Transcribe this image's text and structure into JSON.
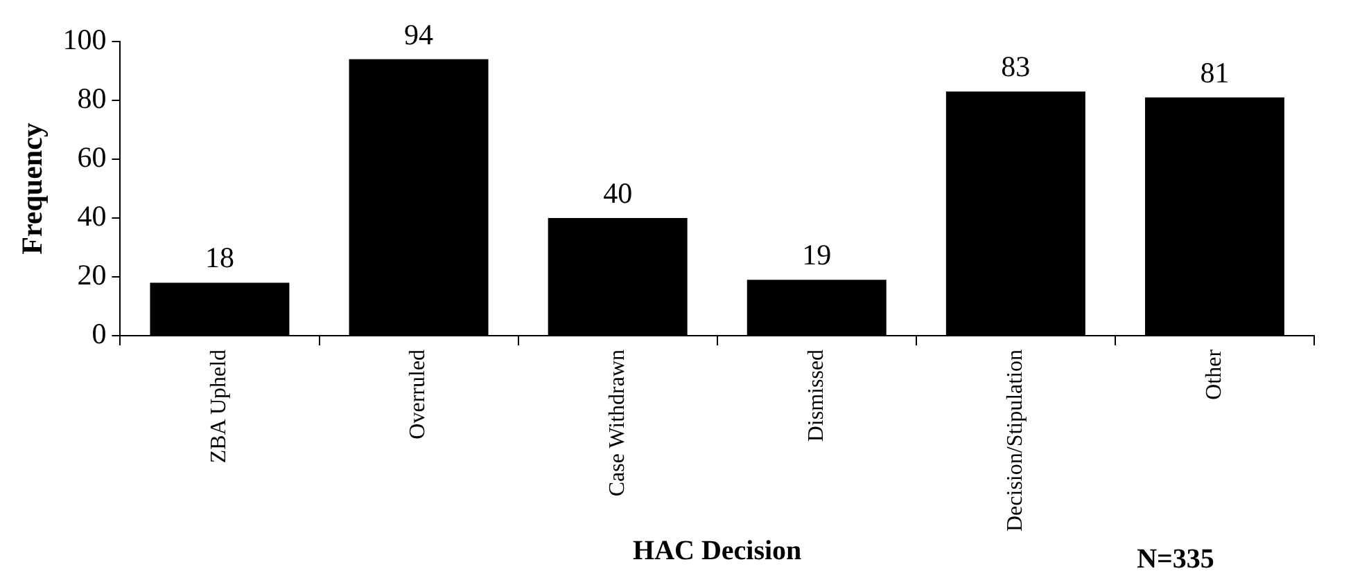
{
  "chart_data": {
    "type": "bar",
    "xlabel": "HAC Decision",
    "ylabel": "Frequency",
    "categories": [
      "ZBA Upheld",
      "Overruled",
      "Case Withdrawn",
      "Dismissed",
      "Decision/Stipulation",
      "Other"
    ],
    "values": [
      18,
      94,
      40,
      19,
      83,
      81
    ],
    "color": "#000000",
    "ylim": [
      0,
      100
    ],
    "yticks": [
      0,
      20,
      40,
      60,
      80,
      100
    ],
    "grid": false,
    "legend": false,
    "data_labels": true,
    "annotations": [
      "N=335"
    ]
  }
}
